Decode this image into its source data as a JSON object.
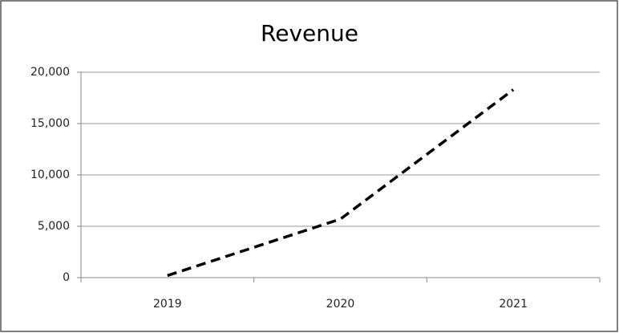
{
  "chart_data": {
    "type": "line",
    "title": "Revenue",
    "categories": [
      "2019",
      "2020",
      "2021"
    ],
    "series": [
      {
        "name": "Revenue",
        "color": "#000000",
        "values": [
          200,
          5700,
          18300
        ]
      }
    ],
    "ylim": [
      0,
      20000
    ],
    "yticks": [
      0,
      {
        "value": 5000,
        "label": "5,000"
      },
      {
        "value": 10000,
        "label": "10,000"
      },
      {
        "value": 15000,
        "label": "15,000"
      },
      {
        "value": 20000,
        "label": "20,000"
      }
    ],
    "grid": true
  }
}
